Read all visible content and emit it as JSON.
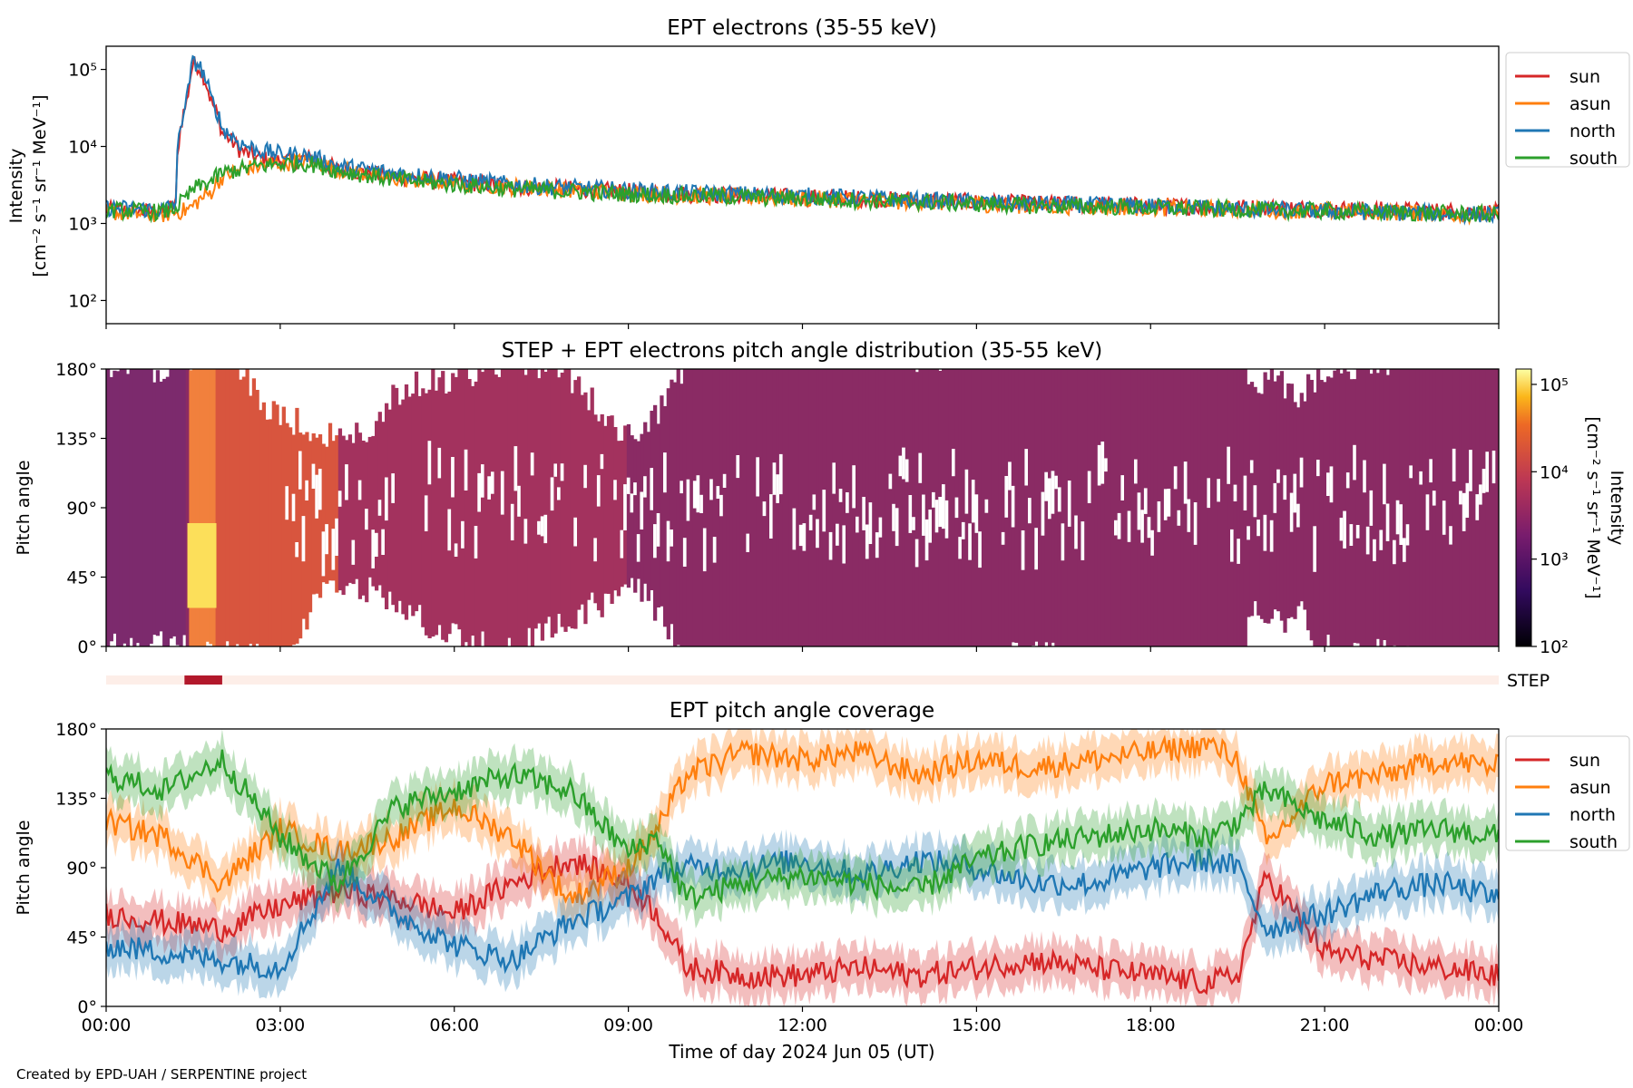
{
  "credit": "Created by EPD-UAH / SERPENTINE project",
  "xlabel": "Time of day 2024 Jun 05 (UT)",
  "x_ticks": [
    "00:00",
    "03:00",
    "06:00",
    "09:00",
    "12:00",
    "15:00",
    "18:00",
    "21:00",
    "00:00"
  ],
  "colors": {
    "sun": "#d62728",
    "asun": "#ff7f0e",
    "north": "#1f77b4",
    "south": "#2ca02c"
  },
  "legend": [
    "sun",
    "asun",
    "north",
    "south"
  ],
  "chart_data": [
    {
      "type": "line",
      "title": "EPT electrons (35-55 keV)",
      "ylabel": "Intensity",
      "yunits": "[cm⁻² s⁻¹ sr⁻¹ MeV⁻¹]",
      "yscale": "log",
      "ylim": [
        50,
        200000
      ],
      "y_ticks": [
        "10²",
        "10³",
        "10⁴",
        "10⁵"
      ],
      "x_hours": [
        0,
        1,
        1.2,
        1.4,
        1.5,
        1.6,
        1.8,
        2,
        2.3,
        2.6,
        3,
        3.5,
        4,
        5,
        6,
        7,
        8,
        9,
        10,
        12,
        14,
        16,
        18,
        20,
        22,
        24
      ],
      "series": [
        {
          "name": "sun",
          "values": [
            1500,
            1400,
            1800,
            40000,
            120000,
            110000,
            40000,
            15000,
            9000,
            7000,
            6500,
            7000,
            5000,
            4000,
            3500,
            3000,
            2800,
            2600,
            2400,
            2200,
            2000,
            1800,
            1700,
            1600,
            1500,
            1400
          ]
        },
        {
          "name": "asun",
          "values": [
            1400,
            1300,
            1400,
            1500,
            1700,
            2000,
            2500,
            4000,
            5000,
            5500,
            6000,
            6500,
            5000,
            3800,
            3300,
            3000,
            2700,
            2500,
            2300,
            2100,
            1900,
            1700,
            1600,
            1500,
            1400,
            1300
          ]
        },
        {
          "name": "north",
          "values": [
            1600,
            1500,
            1900,
            42000,
            125000,
            115000,
            42000,
            17000,
            11000,
            9000,
            8000,
            7500,
            5500,
            4500,
            3800,
            3200,
            2900,
            2700,
            2500,
            2300,
            2000,
            1800,
            1700,
            1500,
            1400,
            1300
          ]
        },
        {
          "name": "south",
          "values": [
            1500,
            1400,
            1600,
            2200,
            2800,
            3000,
            3500,
            4500,
            5000,
            5500,
            6000,
            6000,
            4800,
            3700,
            3200,
            2800,
            2600,
            2400,
            2300,
            2100,
            1900,
            1700,
            1600,
            1500,
            1400,
            1300
          ]
        }
      ],
      "legend_loc": "outside right"
    },
    {
      "type": "heatmap",
      "title": "STEP + EPT electrons pitch angle distribution (35-55 keV)",
      "ylabel": "Pitch angle",
      "ylim": [
        0,
        180
      ],
      "y_ticks": [
        "0°",
        "45°",
        "90°",
        "135°",
        "180°"
      ],
      "colorbar_label": "Intensity",
      "colorbar_units": "[cm⁻² s⁻¹ sr⁻¹ MeV⁻¹]",
      "colorbar_ticks": [
        "10²",
        "10³",
        "10⁴",
        "10⁵"
      ],
      "colorbar_range": [
        100,
        150000
      ],
      "colorscale": "inferno",
      "strip_label": "STEP",
      "step_active_hours": [
        1.35,
        2.0
      ]
    },
    {
      "type": "line",
      "title": "EPT pitch angle coverage",
      "ylabel": "Pitch angle",
      "ylim": [
        0,
        180
      ],
      "y_ticks": [
        "0°",
        "45°",
        "90°",
        "135°",
        "180°"
      ],
      "x_hours": [
        0,
        1,
        2,
        3,
        4,
        5,
        6,
        7,
        8,
        9,
        9.5,
        10,
        11,
        12,
        13,
        14,
        15,
        16,
        17,
        18,
        19,
        19.5,
        20,
        21,
        22,
        23,
        24
      ],
      "series": [
        {
          "name": "sun",
          "values": [
            60,
            55,
            50,
            65,
            75,
            70,
            60,
            80,
            95,
            80,
            60,
            25,
            20,
            20,
            25,
            20,
            25,
            30,
            25,
            20,
            15,
            20,
            85,
            35,
            30,
            25,
            20
          ]
        },
        {
          "name": "asun",
          "values": [
            120,
            110,
            80,
            115,
            100,
            110,
            130,
            110,
            70,
            90,
            115,
            150,
            165,
            160,
            165,
            150,
            160,
            155,
            160,
            165,
            170,
            160,
            105,
            145,
            150,
            160,
            155
          ]
        },
        {
          "name": "north",
          "values": [
            40,
            35,
            30,
            25,
            90,
            60,
            40,
            30,
            55,
            70,
            85,
            90,
            90,
            95,
            85,
            95,
            90,
            80,
            80,
            90,
            95,
            90,
            50,
            60,
            75,
            80,
            70
          ]
        },
        {
          "name": "south",
          "values": [
            150,
            140,
            160,
            110,
            80,
            130,
            140,
            150,
            140,
            100,
            110,
            70,
            80,
            85,
            80,
            75,
            95,
            105,
            110,
            115,
            110,
            120,
            140,
            120,
            110,
            115,
            110
          ]
        }
      ],
      "legend_loc": "outside right"
    }
  ]
}
